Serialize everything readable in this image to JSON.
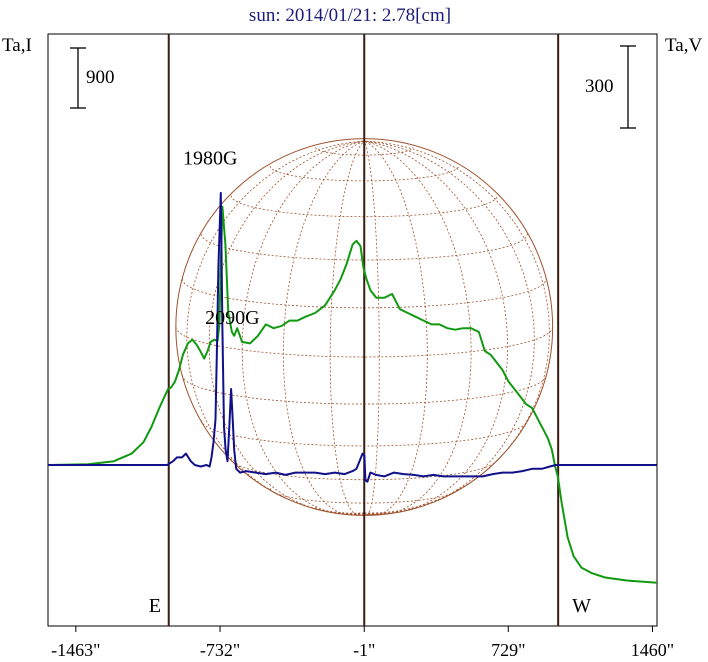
{
  "chart_data": {
    "type": "line",
    "title": "sun: 2014/01/21: 2.78[cm]",
    "left_axis_label": "Ta,I",
    "right_axis_label": "Ta,V",
    "left_scale_label": "900",
    "right_scale_label": "300",
    "xlim": [
      -1604,
      1483
    ],
    "x_ticks": [
      {
        "value": -1463,
        "label": "-1463\""
      },
      {
        "value": -732,
        "label": "-732\""
      },
      {
        "value": -1,
        "label": "-1\""
      },
      {
        "value": 729,
        "label": "729\""
      },
      {
        "value": 1460,
        "label": "1460\""
      }
    ],
    "limb_markers": [
      {
        "value": -992,
        "label": "E"
      },
      {
        "value": -1,
        "label": ""
      },
      {
        "value": 982,
        "label": "W"
      }
    ],
    "annotations": [
      {
        "text": "1980G",
        "x": -788,
        "level": 0.79
      },
      {
        "text": "2090G",
        "x": -676,
        "level": 0.52
      }
    ],
    "solar_disk": {
      "center_x": -1,
      "radius": 955,
      "color": "#a0522d"
    },
    "grid": false,
    "colors": {
      "intensity": "#119911",
      "polarization": "#10108a",
      "limb": "#3a1c10",
      "frame": "#000000",
      "disk": "#a0522d"
    },
    "series": [
      {
        "name": "I",
        "color": "#119911",
        "x": [
          -1604,
          -1400,
          -1270,
          -1180,
          -1120,
          -1080,
          -1040,
          -1010,
          -995,
          -980,
          -960,
          -940,
          -920,
          -895,
          -872,
          -850,
          -832,
          -812,
          -795,
          -780,
          -760,
          -745,
          -735,
          -728,
          -720,
          -705,
          -690,
          -672,
          -660,
          -645,
          -620,
          -580,
          -540,
          -500,
          -460,
          -420,
          -380,
          -340,
          -300,
          -250,
          -200,
          -150,
          -120,
          -90,
          -60,
          -40,
          -20,
          -5,
          10,
          30,
          60,
          100,
          140,
          180,
          220,
          260,
          300,
          340,
          380,
          420,
          460,
          500,
          540,
          580,
          610,
          640,
          670,
          700,
          730,
          760,
          790,
          820,
          850,
          880,
          910,
          930,
          950,
          965,
          980,
          1000,
          1030,
          1060,
          1100,
          1150,
          1220,
          1330,
          1483
        ],
        "y": [
          0,
          0.01,
          0.05,
          0.15,
          0.3,
          0.5,
          0.75,
          0.92,
          1.0,
          1.02,
          1.1,
          1.25,
          1.45,
          1.6,
          1.65,
          1.58,
          1.5,
          1.4,
          1.5,
          1.62,
          1.65,
          1.63,
          1.85,
          2.65,
          3.4,
          2.9,
          2.0,
          1.75,
          1.7,
          1.8,
          1.62,
          1.6,
          1.7,
          1.85,
          1.8,
          1.83,
          1.9,
          1.9,
          1.95,
          2.0,
          2.1,
          2.3,
          2.45,
          2.65,
          2.9,
          2.95,
          2.88,
          2.6,
          2.45,
          2.3,
          2.2,
          2.2,
          2.25,
          2.05,
          2.0,
          1.95,
          1.9,
          1.85,
          1.85,
          1.8,
          1.78,
          1.8,
          1.8,
          1.75,
          1.5,
          1.45,
          1.35,
          1.25,
          1.1,
          1.0,
          0.9,
          0.8,
          0.75,
          0.6,
          0.45,
          0.35,
          0.2,
          0.0,
          -0.15,
          -0.5,
          -0.95,
          -1.2,
          -1.35,
          -1.42,
          -1.48,
          -1.52,
          -1.55
        ]
      },
      {
        "name": "V",
        "color": "#10108a",
        "x": [
          -1604,
          -1200,
          -1080,
          -1040,
          -1000,
          -970,
          -950,
          -925,
          -905,
          -880,
          -860,
          -830,
          -800,
          -785,
          -775,
          -765,
          -755,
          -748,
          -740,
          -728,
          -720,
          -712,
          -704,
          -694,
          -685,
          -676,
          -668,
          -660,
          -650,
          -630,
          -600,
          -550,
          -500,
          -450,
          -400,
          -350,
          -300,
          -250,
          -200,
          -150,
          -100,
          -60,
          -40,
          -25,
          -10,
          0,
          5,
          15,
          30,
          60,
          100,
          150,
          200,
          250,
          300,
          350,
          400,
          450,
          500,
          550,
          600,
          650,
          700,
          750,
          800,
          850,
          900,
          940,
          970,
          982,
          1000,
          1050,
          1200,
          1483
        ],
        "y": [
          0,
          0,
          0,
          0,
          0,
          0.05,
          0.1,
          0.1,
          0.15,
          0.05,
          0,
          -0.02,
          0,
          -0.02,
          0.1,
          0.3,
          0.6,
          1.5,
          2.6,
          3.58,
          1.8,
          0.5,
          0.2,
          0.05,
          0.5,
          1.0,
          0.6,
          0.2,
          -0.05,
          -0.1,
          -0.08,
          -0.1,
          -0.12,
          -0.1,
          -0.13,
          -0.1,
          -0.1,
          -0.1,
          -0.12,
          -0.1,
          -0.12,
          -0.08,
          -0.05,
          0.05,
          0.15,
          0.12,
          -0.2,
          -0.22,
          -0.1,
          -0.13,
          -0.15,
          -0.1,
          -0.12,
          -0.13,
          -0.15,
          -0.13,
          -0.15,
          -0.15,
          -0.15,
          -0.15,
          -0.15,
          -0.12,
          -0.1,
          -0.1,
          -0.08,
          -0.05,
          -0.05,
          -0.02,
          0,
          0,
          0,
          0,
          0,
          0
        ]
      }
    ]
  }
}
